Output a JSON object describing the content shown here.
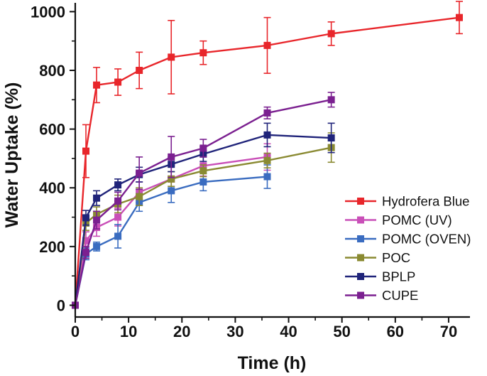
{
  "chart_data": {
    "type": "line",
    "title": "",
    "xlabel": "Time (h)",
    "ylabel": "Water Uptake (%)",
    "xlim": [
      0,
      74
    ],
    "ylim": [
      -40,
      1030
    ],
    "xticks": [
      0,
      10,
      20,
      30,
      40,
      50,
      60,
      70
    ],
    "yticks": [
      0,
      200,
      400,
      600,
      800,
      1000
    ],
    "legend_position": "bottom-right",
    "series": [
      {
        "name": "Hydrofera Blue",
        "color": "#e8262b",
        "x": [
          0,
          2,
          4,
          8,
          12,
          18,
          24,
          36,
          48,
          72
        ],
        "y": [
          0,
          525,
          750,
          760,
          800,
          845,
          860,
          885,
          925,
          980
        ],
        "err": [
          0,
          90,
          60,
          45,
          62,
          125,
          40,
          95,
          40,
          55
        ]
      },
      {
        "name": "POMC (UV)",
        "color": "#c94fb8",
        "x": [
          0,
          2,
          4,
          8,
          12,
          18,
          24,
          36
        ],
        "y": [
          0,
          220,
          265,
          300,
          385,
          430,
          475,
          505
        ],
        "err": [
          0,
          30,
          30,
          30,
          35,
          45,
          35,
          45
        ]
      },
      {
        "name": "POMC (OVEN)",
        "color": "#3a6cc0",
        "x": [
          0,
          2,
          4,
          8,
          12,
          18,
          24,
          36
        ],
        "y": [
          0,
          175,
          200,
          235,
          350,
          390,
          420,
          438
        ],
        "err": [
          0,
          20,
          15,
          40,
          30,
          40,
          30,
          40
        ]
      },
      {
        "name": "POC",
        "color": "#8a8a32",
        "x": [
          0,
          2,
          4,
          8,
          12,
          18,
          24,
          36,
          48
        ],
        "y": [
          0,
          280,
          310,
          345,
          370,
          430,
          458,
          493,
          537
        ],
        "err": [
          0,
          25,
          25,
          30,
          30,
          25,
          20,
          25,
          50
        ]
      },
      {
        "name": "BPLP",
        "color": "#20247a",
        "x": [
          0,
          2,
          4,
          8,
          12,
          18,
          24,
          36,
          48
        ],
        "y": [
          0,
          298,
          365,
          410,
          445,
          480,
          515,
          580,
          570
        ],
        "err": [
          0,
          25,
          25,
          20,
          25,
          25,
          25,
          40,
          50
        ]
      },
      {
        "name": "CUPE",
        "color": "#7b2090",
        "x": [
          0,
          2,
          4,
          8,
          12,
          18,
          24,
          36,
          48
        ],
        "y": [
          0,
          180,
          290,
          355,
          450,
          505,
          535,
          655,
          700
        ],
        "err": [
          0,
          20,
          30,
          30,
          55,
          70,
          30,
          20,
          25
        ]
      }
    ]
  }
}
